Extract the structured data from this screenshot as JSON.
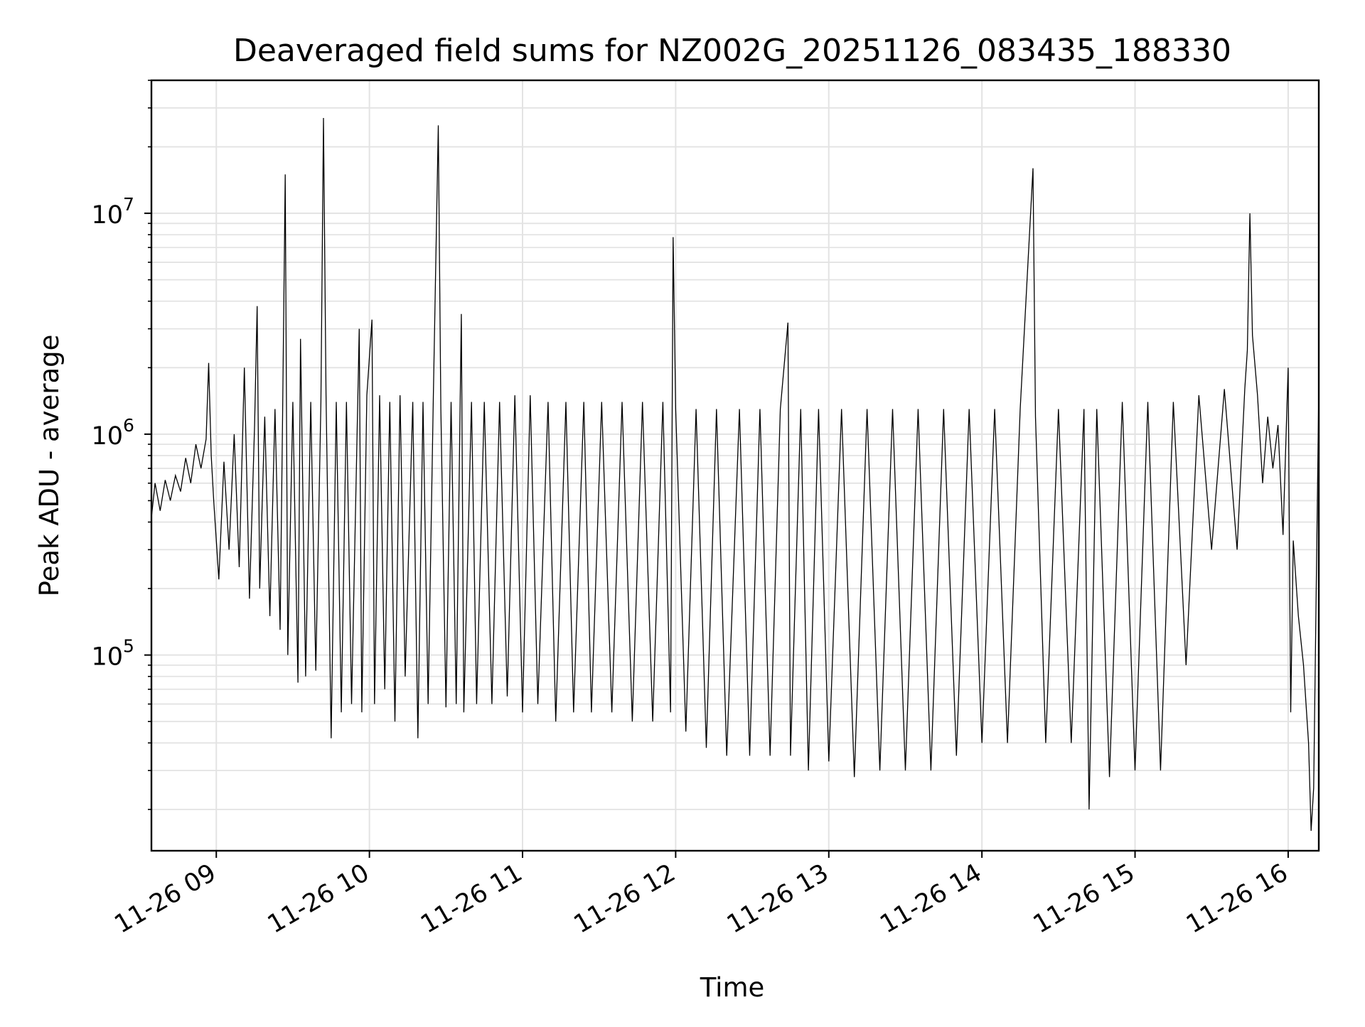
{
  "chart_data": {
    "type": "line",
    "title": "Deaveraged field sums for NZ002G_20251126_083435_188330",
    "xlabel": "Time",
    "ylabel": "Peak ADU - average",
    "yscale": "log",
    "ylim": [
      13000,
      40000000
    ],
    "xlim": [
      "2025-11-26 08:34:35",
      "2025-11-26 16:12:00"
    ],
    "grid": true,
    "legend": "none",
    "line_color": "#000000",
    "x_ticks": [
      {
        "t": "2025-11-26 09:00",
        "label": "11-26 09"
      },
      {
        "t": "2025-11-26 10:00",
        "label": "11-26 10"
      },
      {
        "t": "2025-11-26 11:00",
        "label": "11-26 11"
      },
      {
        "t": "2025-11-26 12:00",
        "label": "11-26 12"
      },
      {
        "t": "2025-11-26 13:00",
        "label": "11-26 13"
      },
      {
        "t": "2025-11-26 14:00",
        "label": "11-26 14"
      },
      {
        "t": "2025-11-26 15:00",
        "label": "11-26 15"
      },
      {
        "t": "2025-11-26 16:00",
        "label": "11-26 16"
      }
    ],
    "y_ticks": [
      {
        "value": 100000,
        "base": "10",
        "exp": "5"
      },
      {
        "value": 1000000,
        "base": "10",
        "exp": "6"
      },
      {
        "value": 10000000,
        "base": "10",
        "exp": "7"
      }
    ],
    "points": [
      [
        "2025-11-26 08:34:35",
        420000
      ],
      [
        "2025-11-26 08:36",
        600000
      ],
      [
        "2025-11-26 08:38",
        450000
      ],
      [
        "2025-11-26 08:40",
        620000
      ],
      [
        "2025-11-26 08:42",
        500000
      ],
      [
        "2025-11-26 08:44",
        650000
      ],
      [
        "2025-11-26 08:46",
        550000
      ],
      [
        "2025-11-26 08:48",
        780000
      ],
      [
        "2025-11-26 08:50",
        600000
      ],
      [
        "2025-11-26 08:52",
        900000
      ],
      [
        "2025-11-26 08:54",
        700000
      ],
      [
        "2025-11-26 08:56",
        950000
      ],
      [
        "2025-11-26 08:57",
        2100000
      ],
      [
        "2025-11-26 08:58",
        800000
      ],
      [
        "2025-11-26 08:59",
        500000
      ],
      [
        "2025-11-26 09:01",
        220000
      ],
      [
        "2025-11-26 09:03",
        750000
      ],
      [
        "2025-11-26 09:05",
        300000
      ],
      [
        "2025-11-26 09:07",
        1000000
      ],
      [
        "2025-11-26 09:09",
        250000
      ],
      [
        "2025-11-26 09:11",
        2000000
      ],
      [
        "2025-11-26 09:13",
        180000
      ],
      [
        "2025-11-26 09:15",
        1100000
      ],
      [
        "2025-11-26 09:16",
        3800000
      ],
      [
        "2025-11-26 09:17",
        200000
      ],
      [
        "2025-11-26 09:19",
        1200000
      ],
      [
        "2025-11-26 09:21",
        150000
      ],
      [
        "2025-11-26 09:23",
        1300000
      ],
      [
        "2025-11-26 09:25",
        130000
      ],
      [
        "2025-11-26 09:26",
        1300000
      ],
      [
        "2025-11-26 09:27",
        15000000
      ],
      [
        "2025-11-26 09:28",
        100000
      ],
      [
        "2025-11-26 09:30",
        1400000
      ],
      [
        "2025-11-26 09:32",
        75000
      ],
      [
        "2025-11-26 09:33",
        2700000
      ],
      [
        "2025-11-26 09:35",
        80000
      ],
      [
        "2025-11-26 09:37",
        1400000
      ],
      [
        "2025-11-26 09:39",
        85000
      ],
      [
        "2025-11-26 09:41",
        1400000
      ],
      [
        "2025-11-26 09:42",
        27000000
      ],
      [
        "2025-11-26 09:43",
        1500000
      ],
      [
        "2025-11-26 09:45",
        42000
      ],
      [
        "2025-11-26 09:47",
        1400000
      ],
      [
        "2025-11-26 09:49",
        55000
      ],
      [
        "2025-11-26 09:51",
        1400000
      ],
      [
        "2025-11-26 09:53",
        60000
      ],
      [
        "2025-11-26 09:56",
        3000000
      ],
      [
        "2025-11-26 09:57",
        55000
      ],
      [
        "2025-11-26 09:59",
        1500000
      ],
      [
        "2025-11-26 10:01",
        3300000
      ],
      [
        "2025-11-26 10:02",
        60000
      ],
      [
        "2025-11-26 10:04",
        1500000
      ],
      [
        "2025-11-26 10:06",
        70000
      ],
      [
        "2025-11-26 10:08",
        1400000
      ],
      [
        "2025-11-26 10:10",
        50000
      ],
      [
        "2025-11-26 10:12",
        1500000
      ],
      [
        "2025-11-26 10:14",
        80000
      ],
      [
        "2025-11-26 10:17",
        1400000
      ],
      [
        "2025-11-26 10:19",
        42000
      ],
      [
        "2025-11-26 10:21",
        1400000
      ],
      [
        "2025-11-26 10:23",
        60000
      ],
      [
        "2025-11-26 10:25",
        1400000
      ],
      [
        "2025-11-26 10:27",
        25000000
      ],
      [
        "2025-11-26 10:28",
        1300000
      ],
      [
        "2025-11-26 10:30",
        58000
      ],
      [
        "2025-11-26 10:32",
        1400000
      ],
      [
        "2025-11-26 10:34",
        60000
      ],
      [
        "2025-11-26 10:36",
        3500000
      ],
      [
        "2025-11-26 10:37",
        55000
      ],
      [
        "2025-11-26 10:40",
        1400000
      ],
      [
        "2025-11-26 10:42",
        60000
      ],
      [
        "2025-11-26 10:45",
        1400000
      ],
      [
        "2025-11-26 10:48",
        60000
      ],
      [
        "2025-11-26 10:51",
        1400000
      ],
      [
        "2025-11-26 10:54",
        65000
      ],
      [
        "2025-11-26 10:57",
        1500000
      ],
      [
        "2025-11-26 11:00",
        55000
      ],
      [
        "2025-11-26 11:03",
        1500000
      ],
      [
        "2025-11-26 11:06",
        60000
      ],
      [
        "2025-11-26 11:10",
        1400000
      ],
      [
        "2025-11-26 11:13",
        50000
      ],
      [
        "2025-11-26 11:17",
        1400000
      ],
      [
        "2025-11-26 11:20",
        55000
      ],
      [
        "2025-11-26 11:24",
        1400000
      ],
      [
        "2025-11-26 11:27",
        55000
      ],
      [
        "2025-11-26 11:31",
        1400000
      ],
      [
        "2025-11-26 11:35",
        55000
      ],
      [
        "2025-11-26 11:39",
        1400000
      ],
      [
        "2025-11-26 11:43",
        50000
      ],
      [
        "2025-11-26 11:47",
        1400000
      ],
      [
        "2025-11-26 11:51",
        50000
      ],
      [
        "2025-11-26 11:55",
        1400000
      ],
      [
        "2025-11-26 11:58",
        55000
      ],
      [
        "2025-11-26 11:59",
        7800000
      ],
      [
        "2025-11-26 12:00",
        1300000
      ],
      [
        "2025-11-26 12:04",
        45000
      ],
      [
        "2025-11-26 12:08",
        1300000
      ],
      [
        "2025-11-26 12:12",
        38000
      ],
      [
        "2025-11-26 12:16",
        1300000
      ],
      [
        "2025-11-26 12:20",
        35000
      ],
      [
        "2025-11-26 12:25",
        1300000
      ],
      [
        "2025-11-26 12:29",
        35000
      ],
      [
        "2025-11-26 12:33",
        1300000
      ],
      [
        "2025-11-26 12:37",
        35000
      ],
      [
        "2025-11-26 12:41",
        1300000
      ],
      [
        "2025-11-26 12:44",
        3200000
      ],
      [
        "2025-11-26 12:45",
        35000
      ],
      [
        "2025-11-26 12:49",
        1300000
      ],
      [
        "2025-11-26 12:52",
        30000
      ],
      [
        "2025-11-26 12:56",
        1300000
      ],
      [
        "2025-11-26 13:00",
        33000
      ],
      [
        "2025-11-26 13:05",
        1300000
      ],
      [
        "2025-11-26 13:10",
        28000
      ],
      [
        "2025-11-26 13:15",
        1300000
      ],
      [
        "2025-11-26 13:20",
        30000
      ],
      [
        "2025-11-26 13:25",
        1300000
      ],
      [
        "2025-11-26 13:30",
        30000
      ],
      [
        "2025-11-26 13:35",
        1300000
      ],
      [
        "2025-11-26 13:40",
        30000
      ],
      [
        "2025-11-26 13:45",
        1300000
      ],
      [
        "2025-11-26 13:50",
        35000
      ],
      [
        "2025-11-26 13:55",
        1300000
      ],
      [
        "2025-11-26 14:00",
        40000
      ],
      [
        "2025-11-26 14:05",
        1300000
      ],
      [
        "2025-11-26 14:10",
        40000
      ],
      [
        "2025-11-26 14:15",
        1300000
      ],
      [
        "2025-11-26 14:20",
        16000000
      ],
      [
        "2025-11-26 14:21",
        1200000
      ],
      [
        "2025-11-26 14:25",
        40000
      ],
      [
        "2025-11-26 14:30",
        1300000
      ],
      [
        "2025-11-26 14:35",
        40000
      ],
      [
        "2025-11-26 14:40",
        1300000
      ],
      [
        "2025-11-26 14:42",
        20000
      ],
      [
        "2025-11-26 14:45",
        1300000
      ],
      [
        "2025-11-26 14:50",
        28000
      ],
      [
        "2025-11-26 14:55",
        1400000
      ],
      [
        "2025-11-26 15:00",
        30000
      ],
      [
        "2025-11-26 15:05",
        1400000
      ],
      [
        "2025-11-26 15:10",
        30000
      ],
      [
        "2025-11-26 15:15",
        1400000
      ],
      [
        "2025-11-26 15:20",
        90000
      ],
      [
        "2025-11-26 15:25",
        1500000
      ],
      [
        "2025-11-26 15:30",
        300000
      ],
      [
        "2025-11-26 15:35",
        1600000
      ],
      [
        "2025-11-26 15:40",
        300000
      ],
      [
        "2025-11-26 15:43",
        1600000
      ],
      [
        "2025-11-26 15:44",
        2400000
      ],
      [
        "2025-11-26 15:45",
        10000000
      ],
      [
        "2025-11-26 15:46",
        2800000
      ],
      [
        "2025-11-26 15:48",
        1500000
      ],
      [
        "2025-11-26 15:50",
        600000
      ],
      [
        "2025-11-26 15:52",
        1200000
      ],
      [
        "2025-11-26 15:54",
        700000
      ],
      [
        "2025-11-26 15:56",
        1100000
      ],
      [
        "2025-11-26 15:58",
        350000
      ],
      [
        "2025-11-26 16:00",
        2000000
      ],
      [
        "2025-11-26 16:01",
        55000
      ],
      [
        "2025-11-26 16:02",
        330000
      ],
      [
        "2025-11-26 16:04",
        150000
      ],
      [
        "2025-11-26 16:06",
        90000
      ],
      [
        "2025-11-26 16:08",
        40000
      ],
      [
        "2025-11-26 16:09",
        16000
      ],
      [
        "2025-11-26 16:10",
        25000
      ],
      [
        "2025-11-26 16:12",
        1600000
      ]
    ]
  }
}
